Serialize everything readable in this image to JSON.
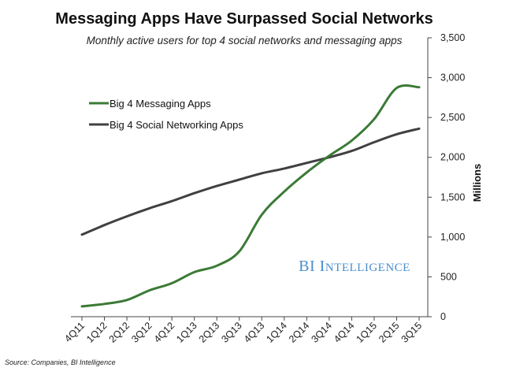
{
  "chart_data": {
    "type": "line",
    "title": "Messaging Apps Have Surpassed Social Networks",
    "subtitle": "Monthly active users for top 4 social networks and messaging apps",
    "ylabel": "Millions",
    "xlabel": "",
    "ylim": [
      0,
      3500
    ],
    "yticks": [
      0,
      500,
      1000,
      1500,
      2000,
      2500,
      3000,
      3500
    ],
    "ytick_labels": [
      "0",
      "500",
      "1,000",
      "1,500",
      "2,000",
      "2,500",
      "3,000",
      "3,500"
    ],
    "y_axis_side": "right",
    "grid": false,
    "legend_position": "left-upper",
    "categories": [
      "4Q11",
      "1Q12",
      "2Q12",
      "3Q12",
      "4Q12",
      "1Q13",
      "2Q13",
      "3Q13",
      "4Q13",
      "1Q14",
      "2Q14",
      "3Q14",
      "4Q14",
      "1Q15",
      "2Q15",
      "3Q15"
    ],
    "series": [
      {
        "name": "Big 4 Messaging Apps",
        "color": "#3a7a35",
        "values": [
          130,
          160,
          210,
          330,
          420,
          560,
          640,
          820,
          1280,
          1570,
          1810,
          2020,
          2210,
          2480,
          2870,
          2880
        ]
      },
      {
        "name": "Big 4 Social Networking Apps",
        "color": "#404040",
        "values": [
          1030,
          1150,
          1260,
          1360,
          1450,
          1550,
          1640,
          1720,
          1800,
          1860,
          1930,
          2000,
          2080,
          2190,
          2290,
          2360
        ]
      }
    ],
    "watermark": "BI Intelligence",
    "source": "Source: Companies, BI Intelligence"
  }
}
